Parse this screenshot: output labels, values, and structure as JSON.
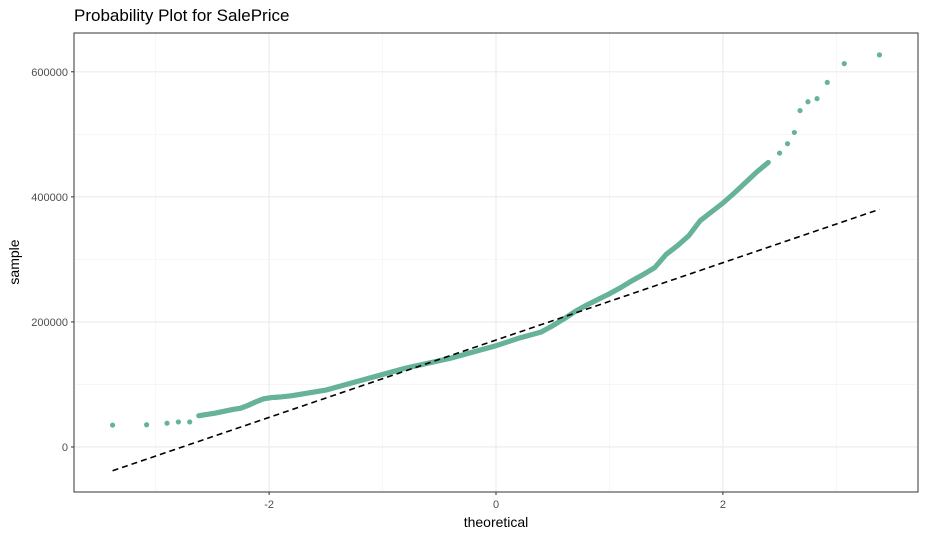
{
  "chart_data": {
    "type": "scatter",
    "title": "Probability Plot for SalePrice",
    "xlabel": "theoretical",
    "ylabel": "sample",
    "xlim": [
      -3.72,
      3.72
    ],
    "ylim": [
      -72000,
      662000
    ],
    "x_ticks": [
      {
        "value": -2,
        "label": "-2"
      },
      {
        "value": 0,
        "label": "0"
      },
      {
        "value": 2,
        "label": "2"
      }
    ],
    "y_ticks": [
      {
        "value": 0,
        "label": "0"
      },
      {
        "value": 200000,
        "label": "200000"
      },
      {
        "value": 400000,
        "label": "400000"
      },
      {
        "value": 600000,
        "label": "600000"
      }
    ],
    "grid": true,
    "point_color": "#66b399",
    "series": [
      {
        "values": [
          [
            -3.38,
            35000
          ],
          [
            -3.08,
            35500
          ],
          [
            -2.9,
            38000
          ],
          [
            -2.8,
            40000
          ],
          [
            -2.7,
            40000
          ],
          [
            -2.62,
            50000
          ],
          [
            -2.55,
            52000
          ],
          [
            -2.48,
            54000
          ],
          [
            -2.4,
            57000
          ],
          [
            -2.32,
            60000
          ],
          [
            -2.25,
            62000
          ],
          [
            -2.18,
            67000
          ],
          [
            -2.12,
            72000
          ],
          [
            -2.05,
            77000
          ],
          [
            -1.98,
            79000
          ],
          [
            -1.9,
            80000
          ],
          [
            -1.8,
            82000
          ],
          [
            -1.7,
            85000
          ],
          [
            -1.6,
            88000
          ],
          [
            -1.5,
            91000
          ],
          [
            -1.4,
            96000
          ],
          [
            -1.3,
            101000
          ],
          [
            -1.2,
            106000
          ],
          [
            -1.1,
            111000
          ],
          [
            -1.0,
            116000
          ],
          [
            -0.9,
            121000
          ],
          [
            -0.8,
            126000
          ],
          [
            -0.7,
            130000
          ],
          [
            -0.6,
            134000
          ],
          [
            -0.5,
            138000
          ],
          [
            -0.4,
            142000
          ],
          [
            -0.3,
            147000
          ],
          [
            -0.2,
            152000
          ],
          [
            -0.1,
            157000
          ],
          [
            0.0,
            162000
          ],
          [
            0.1,
            168000
          ],
          [
            0.2,
            174000
          ],
          [
            0.3,
            179000
          ],
          [
            0.4,
            184000
          ],
          [
            0.5,
            194000
          ],
          [
            0.6,
            205000
          ],
          [
            0.7,
            217000
          ],
          [
            0.8,
            227000
          ],
          [
            0.9,
            236000
          ],
          [
            1.0,
            245000
          ],
          [
            1.1,
            255000
          ],
          [
            1.2,
            266000
          ],
          [
            1.3,
            276000
          ],
          [
            1.4,
            287000
          ],
          [
            1.5,
            308000
          ],
          [
            1.6,
            322000
          ],
          [
            1.7,
            338000
          ],
          [
            1.8,
            362000
          ],
          [
            1.9,
            376000
          ],
          [
            2.0,
            390000
          ],
          [
            2.1,
            406000
          ],
          [
            2.2,
            423000
          ],
          [
            2.3,
            440000
          ],
          [
            2.4,
            455000
          ],
          [
            2.5,
            470000
          ],
          [
            2.57,
            485000
          ],
          [
            2.63,
            503000
          ],
          [
            2.68,
            538000
          ],
          [
            2.75,
            552000
          ],
          [
            2.83,
            557000
          ],
          [
            2.92,
            583000
          ],
          [
            3.07,
            613000
          ],
          [
            3.38,
            627000
          ]
        ]
      }
    ],
    "reference_line": {
      "style": "dashed",
      "color": "#000000",
      "x": [
        -3.38,
        3.38
      ],
      "y": [
        -38000,
        380000
      ]
    }
  }
}
